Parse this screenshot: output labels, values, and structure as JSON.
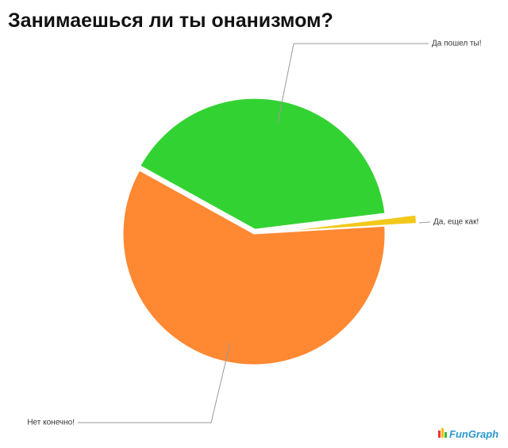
{
  "chart_data": {
    "type": "pie",
    "title": "Занимаешься ли ты онанизмом?",
    "categories": [
      "Да пошел ты!",
      "Да, еще как!",
      "Нет конечно!"
    ],
    "values": [
      40,
      1,
      59
    ],
    "colors": [
      "#33d233",
      "#f2c81a",
      "#ff8833"
    ],
    "watermark": "FunGraph"
  }
}
